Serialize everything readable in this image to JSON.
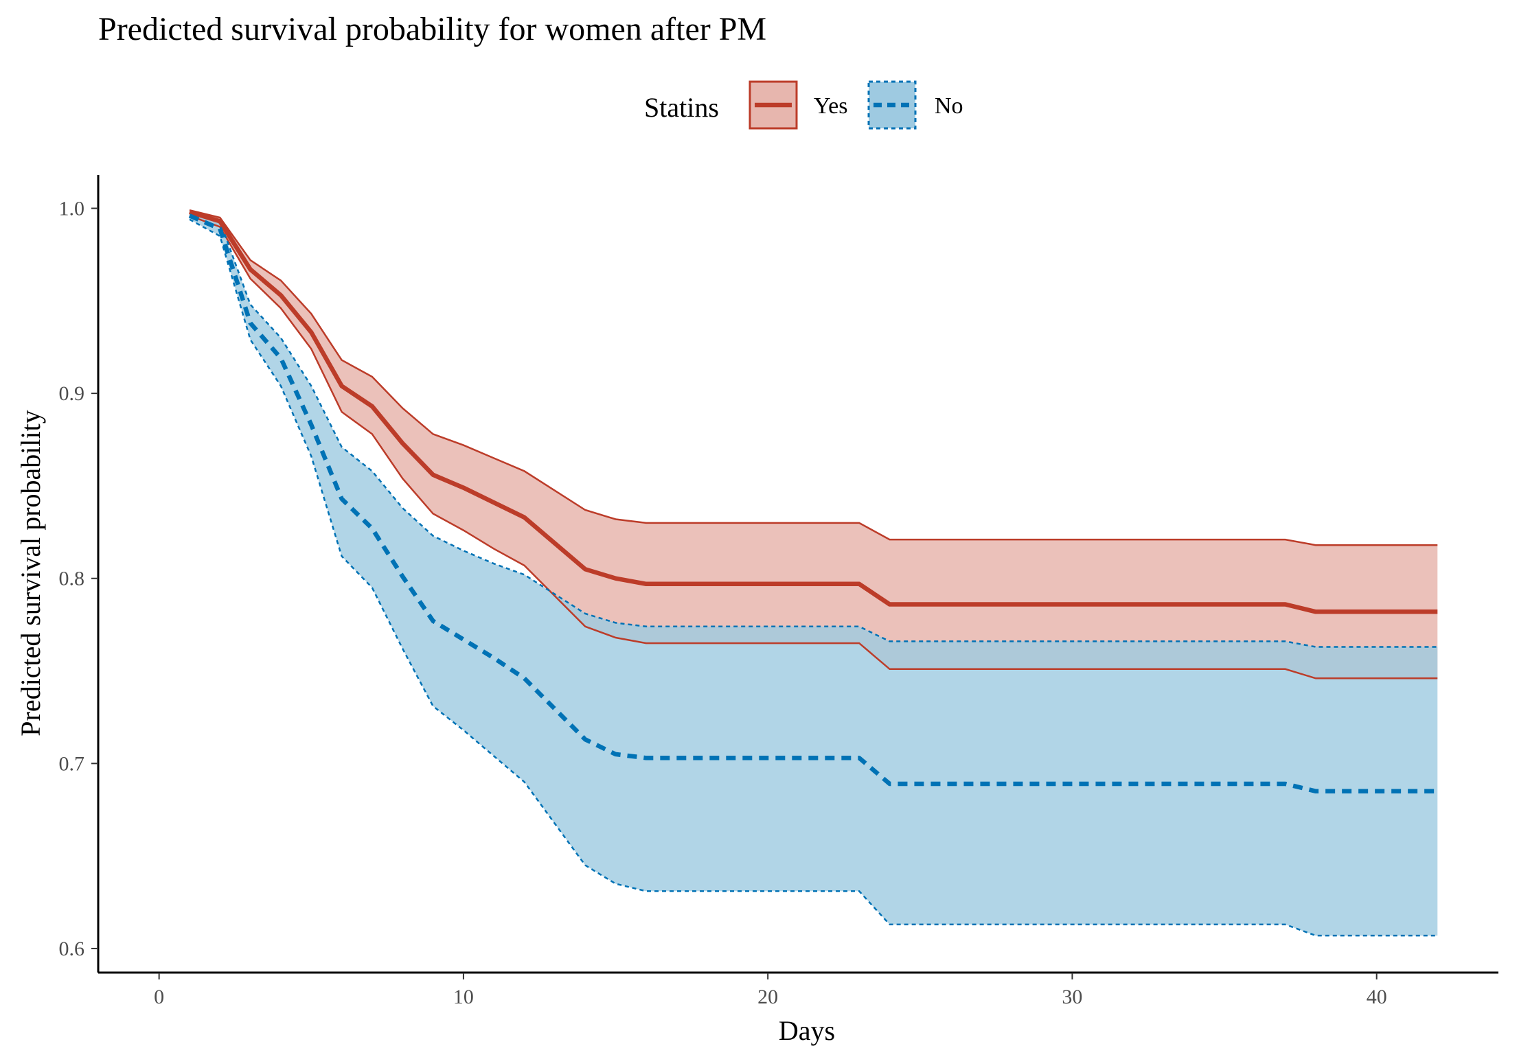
{
  "chart_data": {
    "type": "area",
    "title": "Predicted survival probability for women after PM",
    "xlabel": "Days",
    "ylabel": "Predicted survival probability",
    "xlim": [
      -2,
      44
    ],
    "ylim": [
      0.587,
      1.018
    ],
    "xticks": [
      0,
      10,
      20,
      30,
      40
    ],
    "xtick_labels": [
      "0",
      "10",
      "20",
      "30",
      "40"
    ],
    "yticks": [
      0.6,
      0.7,
      0.8,
      0.9,
      1.0
    ],
    "ytick_labels": [
      "0.6",
      "0.7",
      "0.8",
      "0.9",
      "1.0"
    ],
    "grid": false,
    "legend": {
      "title": "Statins",
      "placement": "top-center"
    },
    "x": [
      1,
      2,
      3,
      4,
      5,
      6,
      7,
      8,
      9,
      10,
      11,
      12,
      14,
      15,
      16,
      19,
      23,
      24,
      37,
      38,
      42
    ],
    "series": [
      {
        "name": "Yes",
        "color": "#BC3C29",
        "fill": "#E7B6AE",
        "line_style": "solid",
        "values": [
          0.998,
          0.993,
          0.967,
          0.953,
          0.933,
          0.904,
          0.893,
          0.873,
          0.856,
          0.849,
          0.841,
          0.833,
          0.805,
          0.8,
          0.797,
          0.797,
          0.797,
          0.786,
          0.786,
          0.782,
          0.782
        ],
        "upper": [
          0.999,
          0.995,
          0.972,
          0.961,
          0.943,
          0.918,
          0.909,
          0.892,
          0.878,
          0.872,
          0.865,
          0.858,
          0.837,
          0.832,
          0.83,
          0.83,
          0.83,
          0.821,
          0.821,
          0.818,
          0.818
        ],
        "lower": [
          0.996,
          0.99,
          0.962,
          0.946,
          0.924,
          0.89,
          0.878,
          0.854,
          0.835,
          0.826,
          0.816,
          0.807,
          0.774,
          0.768,
          0.765,
          0.765,
          0.765,
          0.751,
          0.751,
          0.746,
          0.746
        ]
      },
      {
        "name": "No",
        "color": "#0072B5",
        "fill": "#9ECAE1",
        "line_style": "dashed",
        "values": [
          0.996,
          0.989,
          0.938,
          0.919,
          0.883,
          0.843,
          0.827,
          0.801,
          0.777,
          0.767,
          0.757,
          0.746,
          0.713,
          0.705,
          0.703,
          0.703,
          0.703,
          0.689,
          0.689,
          0.685,
          0.685
        ],
        "upper": [
          0.998,
          0.993,
          0.948,
          0.93,
          0.904,
          0.871,
          0.858,
          0.838,
          0.823,
          0.815,
          0.808,
          0.802,
          0.781,
          0.776,
          0.774,
          0.774,
          0.774,
          0.766,
          0.766,
          0.763,
          0.763
        ],
        "lower": [
          0.994,
          0.985,
          0.929,
          0.904,
          0.866,
          0.812,
          0.795,
          0.762,
          0.731,
          0.718,
          0.704,
          0.69,
          0.645,
          0.635,
          0.631,
          0.631,
          0.631,
          0.613,
          0.613,
          0.607,
          0.607
        ]
      }
    ]
  }
}
